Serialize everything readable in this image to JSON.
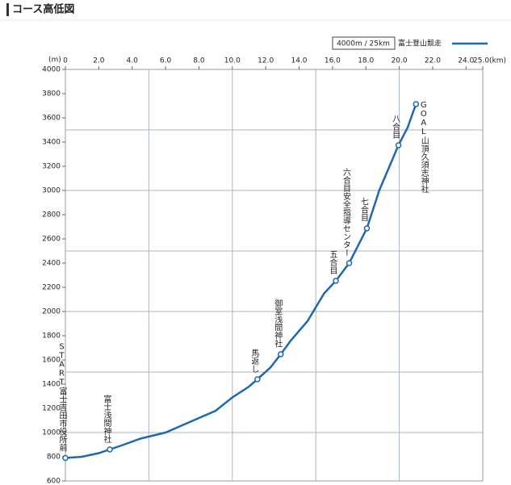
{
  "chart_data": {
    "type": "line",
    "title": "コース高低図",
    "y_unit": "(m)",
    "scale_label": "4000m / 25km",
    "series": [
      {
        "name": "富士登山競走",
        "color": "#1f68b0",
        "x": [
          0,
          1,
          2,
          2.66,
          3.5,
          4.5,
          6,
          7,
          8,
          9,
          10,
          11,
          11.5,
          12.3,
          12.9,
          13.5,
          14.5,
          15.5,
          16.2,
          17,
          18.06,
          18.8,
          19.95,
          20.5,
          21
        ],
        "values": [
          790,
          800,
          830,
          860,
          900,
          950,
          1000,
          1060,
          1120,
          1180,
          1290,
          1380,
          1440,
          1540,
          1647,
          1760,
          1920,
          2150,
          2253,
          2400,
          2687,
          3000,
          3373,
          3520,
          3713
        ]
      }
    ],
    "markers": {
      "x": [
        0,
        2.66,
        11.5,
        12.9,
        16.2,
        17,
        18.06,
        19.95,
        21
      ],
      "values": [
        790,
        860,
        1440,
        1647,
        2253,
        2400,
        2687,
        3373,
        3713
      ],
      "labels": [
        "START富士吉田市役所前",
        "富士浅間神社",
        "馬返し",
        "御室浅間神社",
        "五合目",
        "六合目安全指導センター",
        "七合目",
        "八合目",
        "GOAL山頂久須志神社"
      ]
    },
    "xlim": [
      0,
      25
    ],
    "ylim": [
      600,
      4000
    ],
    "xticks": [
      0,
      {
        "value": 2,
        "label": "2.0"
      },
      {
        "value": 4,
        "label": "4.0"
      },
      {
        "value": 6,
        "label": "6.0"
      },
      {
        "value": 8,
        "label": "8.0"
      },
      {
        "value": 10,
        "label": "10.0"
      },
      {
        "value": 12,
        "label": "12.0"
      },
      {
        "value": 14,
        "label": "14.0"
      },
      {
        "value": 16,
        "label": "16.0"
      },
      {
        "value": 18,
        "label": "18.0"
      },
      {
        "value": 20,
        "label": "20.0"
      },
      {
        "value": 22,
        "label": "22.0"
      },
      {
        "value": 24,
        "label": "24.0"
      },
      {
        "value": 25,
        "label": "25.0(km)"
      }
    ],
    "yticks": [
      600,
      800,
      1000,
      1200,
      1400,
      1600,
      1800,
      2000,
      2200,
      2400,
      2600,
      2800,
      3000,
      3200,
      3400,
      3600,
      3800,
      4000
    ],
    "xgrid": [
      5,
      10,
      15,
      20
    ],
    "ygrid": [
      1000,
      1500,
      2000,
      2500,
      3000,
      3500
    ]
  }
}
